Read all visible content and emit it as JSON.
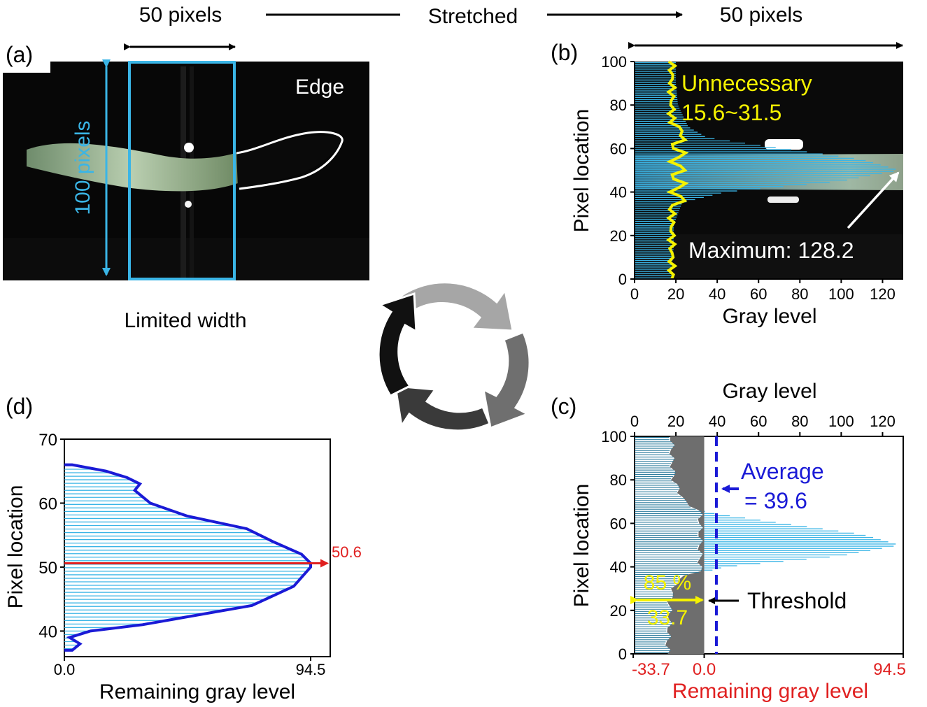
{
  "header": {
    "left_width": "50 pixels",
    "right_width": "50 pixels",
    "stretched": "Stretched"
  },
  "panel_a": {
    "tag": "(a)",
    "edge_label": "Edge",
    "height_label": "100 pixels",
    "caption": "Limited width"
  },
  "panel_b": {
    "tag": "(b)",
    "ylabel": "Pixel location",
    "xlabel": "Gray level",
    "unnecessary_label": "Unnecessary",
    "unnecessary_range": "15.6~31.5",
    "maximum_label": "Maximum: 128.2",
    "xticks": [
      "0",
      "20",
      "40",
      "60",
      "80",
      "100",
      "120"
    ],
    "yticks": [
      "0",
      "20",
      "40",
      "60",
      "80",
      "100"
    ]
  },
  "panel_c": {
    "tag": "(c)",
    "ylabel": "Pixel location",
    "top_xlabel": "Gray level",
    "bottom_xlabel": "Remaining gray level",
    "average_label": "Average",
    "average_value": "= 39.6",
    "threshold_label": "Threshold",
    "percent_label": "85 %",
    "offset_label": "33.7",
    "top_xticks": [
      "0",
      "20",
      "40",
      "60",
      "80",
      "100",
      "120"
    ],
    "bottom_xticks": [
      "-33.7",
      "0.0",
      "94.5"
    ],
    "yticks": [
      "0",
      "20",
      "40",
      "60",
      "80",
      "100"
    ]
  },
  "panel_d": {
    "tag": "(d)",
    "ylabel": "Pixel location",
    "xlabel": "Remaining gray level",
    "peak_label": "50.6",
    "xticks": [
      "0.0",
      "94.5"
    ],
    "yticks": [
      "40",
      "50",
      "60",
      "70"
    ]
  },
  "colors": {
    "cyan": "#3ab5e6",
    "yellow": "#f5f200",
    "blue": "#1a1ad6",
    "red": "#e02020",
    "gray": "#6e6e6e"
  },
  "chart_data": [
    {
      "type": "bar",
      "orientation": "horizontal",
      "description_axes": "panel (b) gray level per pixel row",
      "xlim": [
        0,
        130
      ],
      "ylim": [
        0,
        100
      ],
      "y": [
        5,
        15,
        25,
        35,
        40,
        45,
        50,
        55,
        60,
        65,
        70,
        80,
        90,
        100
      ],
      "values": [
        18,
        19,
        19,
        23,
        44,
        100,
        128.2,
        110,
        72,
        35,
        26,
        21,
        20,
        20
      ],
      "annotations": {
        "unnecessary_range": [
          15.6,
          31.5
        ],
        "maximum": 128.2
      }
    },
    {
      "type": "bar",
      "orientation": "horizontal",
      "description_axes": "panel (c) gray level with threshold",
      "xlim": [
        0,
        130
      ],
      "ylim": [
        0,
        100
      ],
      "threshold": 33.7,
      "threshold_percent": 85,
      "average": 39.6,
      "y": [
        5,
        15,
        25,
        35,
        40,
        45,
        50,
        55,
        60,
        65,
        70,
        80,
        90,
        100
      ],
      "values": [
        18,
        19,
        19,
        23,
        44,
        100,
        128.2,
        110,
        72,
        35,
        26,
        21,
        20,
        20
      ]
    },
    {
      "type": "area",
      "orientation": "horizontal",
      "description_axes": "panel (d) remaining gray level",
      "xlim": [
        0,
        94.5
      ],
      "ylim": [
        37,
        70
      ],
      "y": [
        37,
        38,
        39,
        40,
        41,
        44,
        47,
        50,
        50.6,
        52,
        54,
        56,
        58,
        60,
        62,
        63,
        64,
        65,
        66
      ],
      "values": [
        3,
        6,
        2,
        10,
        30,
        72,
        88,
        94.5,
        94.5,
        91,
        80,
        70,
        47,
        33,
        27,
        29,
        24,
        16,
        3
      ],
      "peak_location": 50.6
    }
  ]
}
